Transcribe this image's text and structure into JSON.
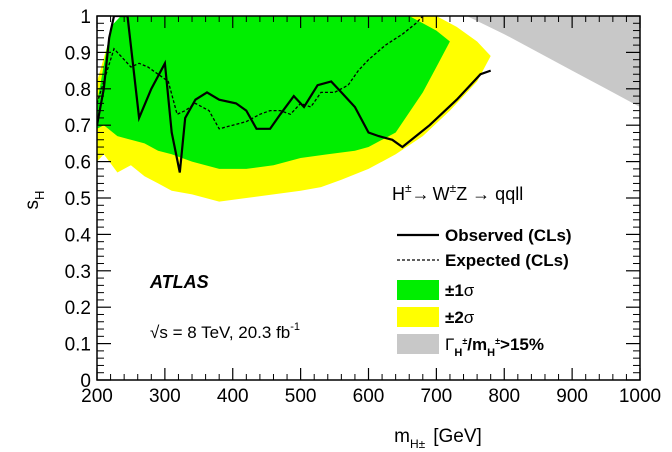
{
  "chart_data": {
    "type": "area",
    "xlabel": {
      "main": "m",
      "sub": "H±",
      "unit": "[GeV]"
    },
    "ylabel": {
      "main": "s",
      "sub": "H"
    },
    "xlim": [
      200,
      1000
    ],
    "ylim": [
      0,
      1
    ],
    "xticks": [
      {
        "v": 200,
        "label": "200"
      },
      {
        "v": 300,
        "label": "300"
      },
      {
        "v": 400,
        "label": "400"
      },
      {
        "v": 500,
        "label": "500"
      },
      {
        "v": 600,
        "label": "600"
      },
      {
        "v": 700,
        "label": "700"
      },
      {
        "v": 800,
        "label": "800"
      },
      {
        "v": 900,
        "label": "900"
      },
      {
        "v": 1000,
        "label": "1000"
      }
    ],
    "yticks": [
      {
        "v": 0,
        "label": "0"
      },
      {
        "v": 0.1,
        "label": "0.1"
      },
      {
        "v": 0.2,
        "label": "0.2"
      },
      {
        "v": 0.3,
        "label": "0.3"
      },
      {
        "v": 0.4,
        "label": "0.4"
      },
      {
        "v": 0.5,
        "label": "0.5"
      },
      {
        "v": 0.6,
        "label": "0.6"
      },
      {
        "v": 0.7,
        "label": "0.7"
      },
      {
        "v": 0.8,
        "label": "0.8"
      },
      {
        "v": 0.9,
        "label": "0.9"
      },
      {
        "v": 1,
        "label": "1"
      }
    ],
    "band_2sigma": {
      "upper": [
        [
          200,
          0.82
        ],
        [
          220,
          0.95
        ],
        [
          235,
          1.0
        ],
        [
          700,
          1.0
        ],
        [
          730,
          0.97
        ],
        [
          760,
          0.93
        ],
        [
          780,
          0.89
        ]
      ],
      "lower": [
        [
          200,
          0.6
        ],
        [
          210,
          0.62
        ],
        [
          230,
          0.57
        ],
        [
          250,
          0.59
        ],
        [
          270,
          0.56
        ],
        [
          290,
          0.54
        ],
        [
          310,
          0.52
        ],
        [
          340,
          0.51
        ],
        [
          380,
          0.49
        ],
        [
          420,
          0.5
        ],
        [
          460,
          0.51
        ],
        [
          500,
          0.52
        ],
        [
          530,
          0.53
        ],
        [
          560,
          0.55
        ],
        [
          600,
          0.58
        ],
        [
          640,
          0.62
        ],
        [
          680,
          0.67
        ],
        [
          720,
          0.74
        ],
        [
          760,
          0.82
        ],
        [
          780,
          0.89
        ]
      ]
    },
    "band_1sigma": {
      "upper": [
        [
          200,
          0.76
        ],
        [
          220,
          0.97
        ],
        [
          235,
          1.0
        ],
        [
          660,
          1.0
        ],
        [
          680,
          0.98
        ],
        [
          700,
          0.96
        ],
        [
          720,
          0.93
        ]
      ],
      "lower": [
        [
          200,
          0.69
        ],
        [
          210,
          0.7
        ],
        [
          230,
          0.67
        ],
        [
          250,
          0.66
        ],
        [
          270,
          0.65
        ],
        [
          290,
          0.63
        ],
        [
          310,
          0.62
        ],
        [
          340,
          0.6
        ],
        [
          380,
          0.58
        ],
        [
          420,
          0.58
        ],
        [
          460,
          0.59
        ],
        [
          500,
          0.61
        ],
        [
          540,
          0.62
        ],
        [
          580,
          0.63
        ],
        [
          600,
          0.64
        ],
        [
          640,
          0.68
        ],
        [
          680,
          0.79
        ],
        [
          700,
          0.86
        ],
        [
          720,
          0.93
        ]
      ]
    },
    "excluded_region": {
      "edge": [
        [
          745,
          1.0
        ],
        [
          800,
          0.95
        ],
        [
          850,
          0.9
        ],
        [
          900,
          0.85
        ],
        [
          950,
          0.8
        ],
        [
          1000,
          0.75
        ]
      ]
    },
    "series": [
      {
        "name": "Observed (CLs)",
        "points": [
          [
            200,
            0.7
          ],
          [
            210,
            0.8
          ],
          [
            218,
            0.94
          ],
          [
            225,
            1.0
          ],
          [
            245,
            1.0
          ],
          [
            262,
            0.72
          ],
          [
            280,
            0.8
          ],
          [
            300,
            0.87
          ],
          [
            310,
            0.68
          ],
          [
            322,
            0.57
          ],
          [
            330,
            0.72
          ],
          [
            345,
            0.77
          ],
          [
            362,
            0.79
          ],
          [
            380,
            0.77
          ],
          [
            405,
            0.76
          ],
          [
            420,
            0.74
          ],
          [
            435,
            0.69
          ],
          [
            455,
            0.69
          ],
          [
            470,
            0.73
          ],
          [
            490,
            0.78
          ],
          [
            505,
            0.75
          ],
          [
            525,
            0.81
          ],
          [
            545,
            0.82
          ],
          [
            560,
            0.79
          ],
          [
            580,
            0.75
          ],
          [
            600,
            0.68
          ],
          [
            615,
            0.67
          ],
          [
            635,
            0.66
          ],
          [
            650,
            0.64
          ],
          [
            690,
            0.7
          ],
          [
            730,
            0.77
          ],
          [
            765,
            0.84
          ],
          [
            780,
            0.85
          ]
        ]
      },
      {
        "name": "Expected (CLs)",
        "points": [
          [
            200,
            0.76
          ],
          [
            215,
            0.85
          ],
          [
            225,
            0.91
          ],
          [
            240,
            0.88
          ],
          [
            250,
            0.86
          ],
          [
            262,
            0.87
          ],
          [
            275,
            0.86
          ],
          [
            290,
            0.84
          ],
          [
            305,
            0.82
          ],
          [
            318,
            0.73
          ],
          [
            330,
            0.74
          ],
          [
            345,
            0.76
          ],
          [
            365,
            0.74
          ],
          [
            380,
            0.69
          ],
          [
            400,
            0.7
          ],
          [
            420,
            0.71
          ],
          [
            440,
            0.73
          ],
          [
            455,
            0.74
          ],
          [
            470,
            0.74
          ],
          [
            485,
            0.73
          ],
          [
            500,
            0.76
          ],
          [
            515,
            0.75
          ],
          [
            530,
            0.79
          ],
          [
            550,
            0.79
          ],
          [
            570,
            0.81
          ],
          [
            585,
            0.85
          ],
          [
            600,
            0.88
          ],
          [
            625,
            0.92
          ],
          [
            650,
            0.95
          ],
          [
            670,
            0.98
          ],
          [
            680,
            1.0
          ]
        ]
      }
    ],
    "annotations": {
      "process": {
        "H": "H",
        "sup": "±",
        "arrow1": "→",
        "W": "W",
        "wsup": "±",
        "rest": "Z → qqll"
      },
      "experiment": "ATLAS",
      "energy": {
        "sqrt": "√",
        "s": "s = 8 TeV, 20.3 fb",
        "sup": "-1"
      }
    },
    "legend": {
      "placement": "right",
      "observed": "Observed (CLs)",
      "expected": "Expected (CLs)",
      "one_sigma": {
        "pm": "±1",
        "sym": "σ"
      },
      "two_sigma": {
        "pm": "±2",
        "sym": "σ"
      },
      "width": {
        "G": "Γ",
        "gsub": "H",
        "gsup": "±",
        "slash": "/m",
        "msub": "H",
        "msup": "±",
        "rest": ">15%"
      }
    },
    "colors": {
      "two_sigma": "#ffff00",
      "one_sigma": "#00ee00",
      "excluded": "#c8c8c8",
      "line": "#000000"
    }
  }
}
